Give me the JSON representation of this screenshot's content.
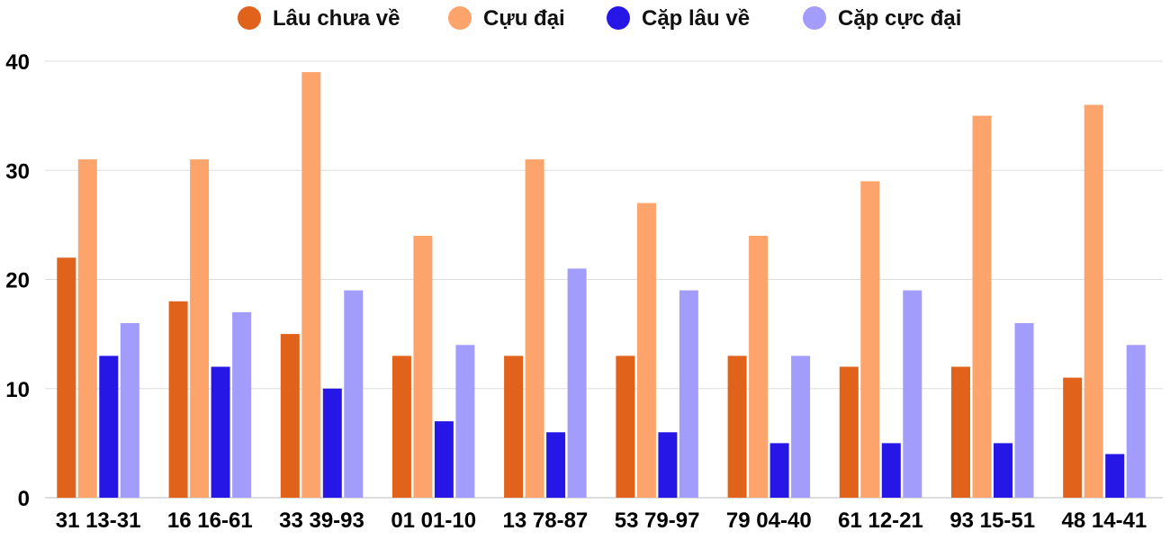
{
  "chart_data": {
    "type": "bar",
    "title": "",
    "xlabel": "",
    "ylabel": "",
    "ylim": [
      0,
      40
    ],
    "yticks": [
      0,
      10,
      20,
      30,
      40
    ],
    "grid": true,
    "legend_position": "top-center",
    "categories": [
      "31 13-31",
      "16 16-61",
      "33 39-93",
      "01 01-10",
      "13 78-87",
      "53 79-97",
      "79 04-40",
      "61 12-21",
      "93 15-51",
      "48 14-41"
    ],
    "series": [
      {
        "name": "Lâu chưa về",
        "color": "#e1621a",
        "values": [
          22,
          18,
          15,
          13,
          13,
          13,
          13,
          12,
          12,
          11
        ]
      },
      {
        "name": "Cựu đại",
        "color": "#fca46c",
        "values": [
          31,
          31,
          39,
          24,
          31,
          27,
          24,
          29,
          35,
          36
        ]
      },
      {
        "name": "Cặp lâu về",
        "color": "#2617e6",
        "values": [
          13,
          12,
          10,
          7,
          6,
          6,
          5,
          5,
          5,
          4
        ]
      },
      {
        "name": "Cặp cực đại",
        "color": "#a29cfb",
        "values": [
          16,
          17,
          19,
          14,
          21,
          19,
          13,
          19,
          16,
          14
        ]
      }
    ]
  }
}
